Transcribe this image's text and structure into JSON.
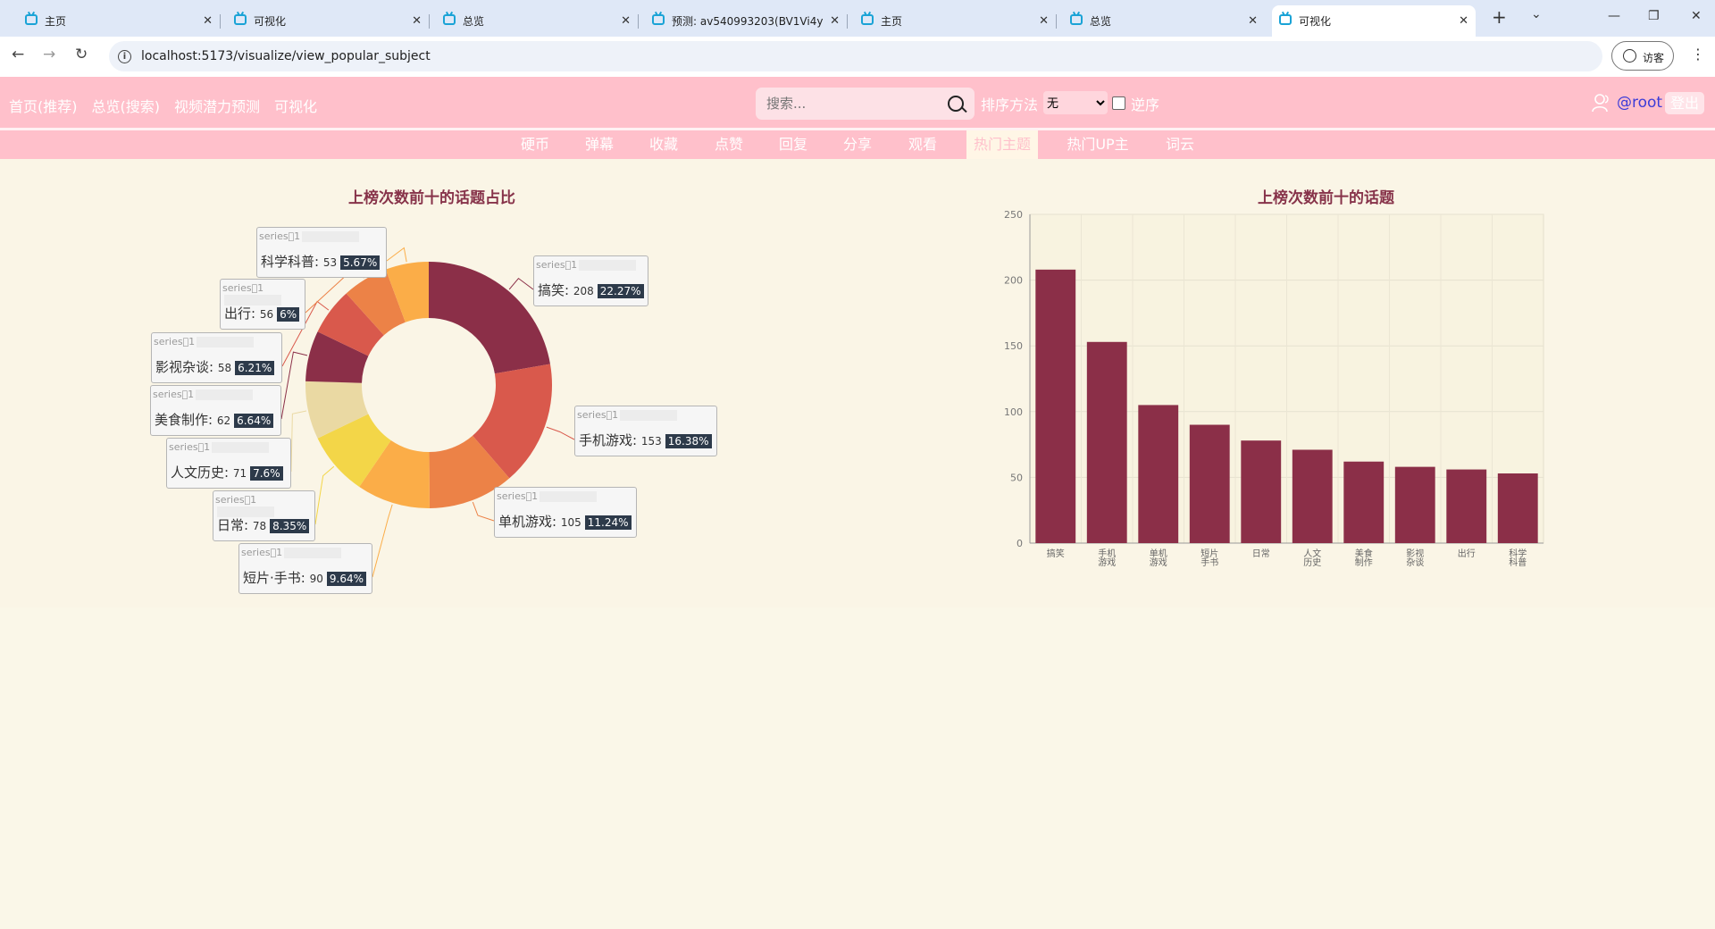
{
  "browser": {
    "tabs": [
      {
        "title": "主页"
      },
      {
        "title": "可视化"
      },
      {
        "title": "总览"
      },
      {
        "title": "预测: av540993203(BV1Vi4y"
      },
      {
        "title": "主页"
      },
      {
        "title": "总览"
      },
      {
        "title": "可视化"
      }
    ],
    "new_tab": "+",
    "url": "localhost:5173/visualize/view_popular_subject",
    "profile_label": "访客"
  },
  "header": {
    "nav": [
      "首页(推荐)",
      "总览(搜索)",
      "视频潜力预测",
      "可视化"
    ],
    "search_placeholder": "搜索...",
    "sort_label": "排序方法",
    "sort_value": "无",
    "reverse_label": "逆序",
    "username": "@root",
    "logout": "登出"
  },
  "subnav": {
    "items": [
      "硬币",
      "弹幕",
      "收藏",
      "点赞",
      "回复",
      "分享",
      "观看",
      "热门主题",
      "热门UP主",
      "词云"
    ],
    "active": "热门主题"
  },
  "colors": {
    "accent": "#ffc0cb",
    "bar": "#8b2f48",
    "title": "#87334a"
  },
  "chart_data": [
    {
      "type": "pie",
      "title": "上榜次数前十的话题占比",
      "series_label": "series\u00001",
      "categories": [
        "搞笑",
        "手机游戏",
        "单机游戏",
        "短片·手书",
        "日常",
        "人文历史",
        "美食制作",
        "影视杂谈",
        "出行",
        "科学科普"
      ],
      "values": [
        208,
        153,
        105,
        90,
        78,
        71,
        62,
        58,
        56,
        53
      ],
      "percents": [
        "22.27%",
        "16.38%",
        "11.24%",
        "9.64%",
        "8.35%",
        "7.6%",
        "6.64%",
        "6.21%",
        "6%",
        "5.67%"
      ],
      "colors": [
        "#8b2f48",
        "#d9594c",
        "#ec8247",
        "#fbad48",
        "#f3d648",
        "#ead9a3",
        "#8b2f48",
        "#d9594c",
        "#ec8247",
        "#fbad48"
      ]
    },
    {
      "type": "bar",
      "title": "上榜次数前十的话题",
      "categories": [
        "搞笑",
        "手机游戏",
        "单机游戏",
        "短片手书",
        "日常",
        "人文历史",
        "美食制作",
        "影视杂谈",
        "出行",
        "科学科普"
      ],
      "values": [
        208,
        153,
        105,
        90,
        78,
        71,
        62,
        58,
        56,
        53
      ],
      "yticks": [
        0,
        50,
        100,
        150,
        200,
        250
      ],
      "ylim": [
        0,
        250
      ]
    }
  ]
}
